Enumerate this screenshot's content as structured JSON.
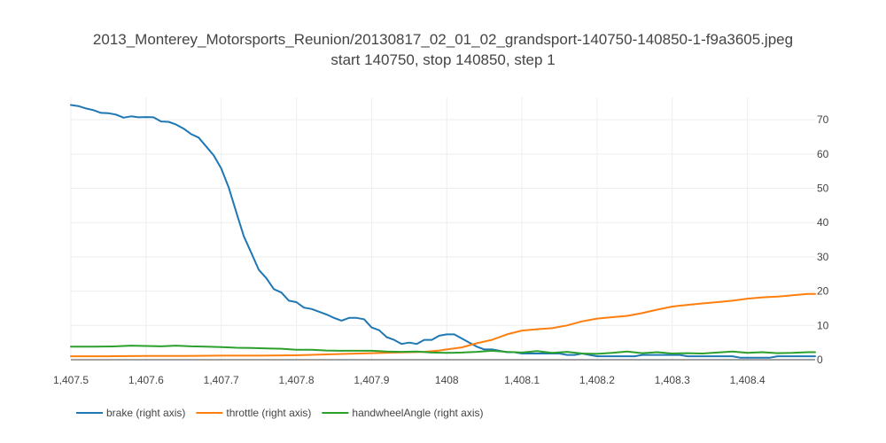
{
  "chart_data": {
    "type": "line",
    "title": "2013_Monterey_Motorsports_Reunion/20130817_02_01_02_grandsport-140750-140850-1-f9a3605.jpeg",
    "subtitle": "start 140750, stop 140850, step 1",
    "xlabel": "",
    "ylabel": "",
    "xlim": [
      1407.5,
      1408.49
    ],
    "ylim": [
      0,
      76.5
    ],
    "x_ticks": [
      1407.5,
      1407.6,
      1407.7,
      1407.8,
      1407.9,
      1408,
      1408.1,
      1408.2,
      1408.3,
      1408.4
    ],
    "x_tick_labels": [
      "1,407.5",
      "1,407.6",
      "1,407.7",
      "1,407.8",
      "1,407.9",
      "1408",
      "1,408.1",
      "1,408.2",
      "1,408.3",
      "1,408.4"
    ],
    "y_ticks": [
      0,
      10,
      20,
      30,
      40,
      50,
      60,
      70
    ],
    "y_tick_labels": [
      "0",
      "10",
      "20",
      "30",
      "40",
      "50",
      "60",
      "70"
    ],
    "y_axis_side": "right",
    "grid": true,
    "legend_position": "bottom-left",
    "series": [
      {
        "name": "brake (right axis)",
        "color": "#1f77b4",
        "points": [
          [
            1407.5,
            74.3
          ],
          [
            1407.51,
            74.0
          ],
          [
            1407.52,
            73.3
          ],
          [
            1407.53,
            72.8
          ],
          [
            1407.54,
            72.0
          ],
          [
            1407.55,
            71.9
          ],
          [
            1407.56,
            71.5
          ],
          [
            1407.57,
            70.6
          ],
          [
            1407.58,
            71.0
          ],
          [
            1407.59,
            70.7
          ],
          [
            1407.6,
            70.8
          ],
          [
            1407.61,
            70.7
          ],
          [
            1407.62,
            69.5
          ],
          [
            1407.63,
            69.4
          ],
          [
            1407.64,
            68.6
          ],
          [
            1407.65,
            67.4
          ],
          [
            1407.66,
            65.8
          ],
          [
            1407.67,
            64.8
          ],
          [
            1407.68,
            62.2
          ],
          [
            1407.69,
            59.6
          ],
          [
            1407.7,
            55.8
          ],
          [
            1407.71,
            50.2
          ],
          [
            1407.72,
            43.0
          ],
          [
            1407.73,
            36.0
          ],
          [
            1407.74,
            31.2
          ],
          [
            1407.75,
            26.2
          ],
          [
            1407.76,
            23.8
          ],
          [
            1407.77,
            20.6
          ],
          [
            1407.78,
            19.6
          ],
          [
            1407.79,
            17.2
          ],
          [
            1407.8,
            16.8
          ],
          [
            1407.81,
            15.2
          ],
          [
            1407.82,
            14.8
          ],
          [
            1407.83,
            14.0
          ],
          [
            1407.84,
            13.2
          ],
          [
            1407.85,
            12.2
          ],
          [
            1407.86,
            11.4
          ],
          [
            1407.87,
            12.2
          ],
          [
            1407.88,
            12.2
          ],
          [
            1407.89,
            11.8
          ],
          [
            1407.9,
            9.4
          ],
          [
            1407.91,
            8.6
          ],
          [
            1407.92,
            6.6
          ],
          [
            1407.93,
            5.8
          ],
          [
            1407.94,
            4.6
          ],
          [
            1407.95,
            5.0
          ],
          [
            1407.96,
            4.6
          ],
          [
            1407.97,
            5.8
          ],
          [
            1407.98,
            5.8
          ],
          [
            1407.99,
            7.0
          ],
          [
            1408.0,
            7.4
          ],
          [
            1408.01,
            7.4
          ],
          [
            1408.02,
            6.2
          ],
          [
            1408.03,
            5.0
          ],
          [
            1408.04,
            3.8
          ],
          [
            1408.05,
            3.0
          ],
          [
            1408.06,
            3.0
          ],
          [
            1408.07,
            2.6
          ],
          [
            1408.08,
            2.2
          ],
          [
            1408.09,
            2.2
          ],
          [
            1408.1,
            1.8
          ],
          [
            1408.11,
            1.8
          ],
          [
            1408.12,
            1.8
          ],
          [
            1408.13,
            1.8
          ],
          [
            1408.14,
            1.8
          ],
          [
            1408.15,
            1.8
          ],
          [
            1408.16,
            1.4
          ],
          [
            1408.17,
            1.4
          ],
          [
            1408.18,
            1.8
          ],
          [
            1408.19,
            1.4
          ],
          [
            1408.2,
            1.0
          ],
          [
            1408.21,
            1.0
          ],
          [
            1408.22,
            1.0
          ],
          [
            1408.23,
            1.0
          ],
          [
            1408.24,
            1.0
          ],
          [
            1408.25,
            1.0
          ],
          [
            1408.26,
            1.4
          ],
          [
            1408.27,
            1.4
          ],
          [
            1408.28,
            1.4
          ],
          [
            1408.29,
            1.4
          ],
          [
            1408.3,
            1.4
          ],
          [
            1408.31,
            1.4
          ],
          [
            1408.32,
            1.0
          ],
          [
            1408.33,
            1.0
          ],
          [
            1408.34,
            1.0
          ],
          [
            1408.35,
            1.0
          ],
          [
            1408.36,
            1.0
          ],
          [
            1408.37,
            1.0
          ],
          [
            1408.38,
            1.0
          ],
          [
            1408.39,
            0.6
          ],
          [
            1408.4,
            0.6
          ],
          [
            1408.41,
            0.6
          ],
          [
            1408.42,
            0.6
          ],
          [
            1408.43,
            0.6
          ],
          [
            1408.44,
            1.0
          ],
          [
            1408.45,
            1.0
          ],
          [
            1408.46,
            1.0
          ],
          [
            1408.47,
            1.0
          ],
          [
            1408.48,
            1.0
          ],
          [
            1408.49,
            1.0
          ]
        ]
      },
      {
        "name": "throttle (right axis)",
        "color": "#ff7f0e",
        "points": [
          [
            1407.5,
            1.0
          ],
          [
            1407.55,
            1.0
          ],
          [
            1407.6,
            1.1
          ],
          [
            1407.65,
            1.1
          ],
          [
            1407.7,
            1.2
          ],
          [
            1407.75,
            1.2
          ],
          [
            1407.8,
            1.3
          ],
          [
            1407.85,
            1.6
          ],
          [
            1407.9,
            1.9
          ],
          [
            1407.95,
            2.2
          ],
          [
            1407.97,
            2.3
          ],
          [
            1407.99,
            2.7
          ],
          [
            1408.0,
            3.0
          ],
          [
            1408.02,
            3.6
          ],
          [
            1408.04,
            4.8
          ],
          [
            1408.06,
            5.8
          ],
          [
            1408.08,
            7.4
          ],
          [
            1408.1,
            8.5
          ],
          [
            1408.12,
            8.9
          ],
          [
            1408.14,
            9.2
          ],
          [
            1408.16,
            10.0
          ],
          [
            1408.18,
            11.2
          ],
          [
            1408.2,
            12.0
          ],
          [
            1408.22,
            12.4
          ],
          [
            1408.24,
            12.8
          ],
          [
            1408.26,
            13.6
          ],
          [
            1408.28,
            14.6
          ],
          [
            1408.3,
            15.5
          ],
          [
            1408.32,
            16.0
          ],
          [
            1408.34,
            16.4
          ],
          [
            1408.36,
            16.8
          ],
          [
            1408.38,
            17.2
          ],
          [
            1408.4,
            17.8
          ],
          [
            1408.42,
            18.2
          ],
          [
            1408.44,
            18.4
          ],
          [
            1408.46,
            18.8
          ],
          [
            1408.48,
            19.2
          ],
          [
            1408.49,
            19.2
          ]
        ]
      },
      {
        "name": "handwheelAngle (right axis)",
        "color": "#2ca02c",
        "points": [
          [
            1407.5,
            3.8
          ],
          [
            1407.53,
            3.8
          ],
          [
            1407.56,
            3.9
          ],
          [
            1407.58,
            4.1
          ],
          [
            1407.6,
            4.0
          ],
          [
            1407.62,
            3.9
          ],
          [
            1407.64,
            4.1
          ],
          [
            1407.66,
            3.9
          ],
          [
            1407.68,
            3.8
          ],
          [
            1407.7,
            3.7
          ],
          [
            1407.72,
            3.5
          ],
          [
            1407.74,
            3.4
          ],
          [
            1407.76,
            3.3
          ],
          [
            1407.78,
            3.2
          ],
          [
            1407.8,
            2.9
          ],
          [
            1407.82,
            2.9
          ],
          [
            1407.84,
            2.7
          ],
          [
            1407.86,
            2.6
          ],
          [
            1407.88,
            2.6
          ],
          [
            1407.9,
            2.6
          ],
          [
            1407.92,
            2.4
          ],
          [
            1407.94,
            2.3
          ],
          [
            1407.96,
            2.4
          ],
          [
            1407.98,
            2.1
          ],
          [
            1408.0,
            2.0
          ],
          [
            1408.02,
            2.1
          ],
          [
            1408.04,
            2.3
          ],
          [
            1408.06,
            2.6
          ],
          [
            1408.08,
            2.3
          ],
          [
            1408.1,
            2.1
          ],
          [
            1408.12,
            2.5
          ],
          [
            1408.14,
            2.0
          ],
          [
            1408.16,
            2.3
          ],
          [
            1408.18,
            1.8
          ],
          [
            1408.2,
            1.7
          ],
          [
            1408.22,
            2.0
          ],
          [
            1408.24,
            2.4
          ],
          [
            1408.26,
            1.9
          ],
          [
            1408.28,
            2.2
          ],
          [
            1408.3,
            1.8
          ],
          [
            1408.32,
            1.9
          ],
          [
            1408.34,
            1.8
          ],
          [
            1408.36,
            2.1
          ],
          [
            1408.38,
            2.4
          ],
          [
            1408.4,
            2.0
          ],
          [
            1408.42,
            2.2
          ],
          [
            1408.44,
            1.9
          ],
          [
            1408.46,
            2.0
          ],
          [
            1408.48,
            2.2
          ],
          [
            1408.49,
            2.2
          ]
        ]
      }
    ]
  }
}
